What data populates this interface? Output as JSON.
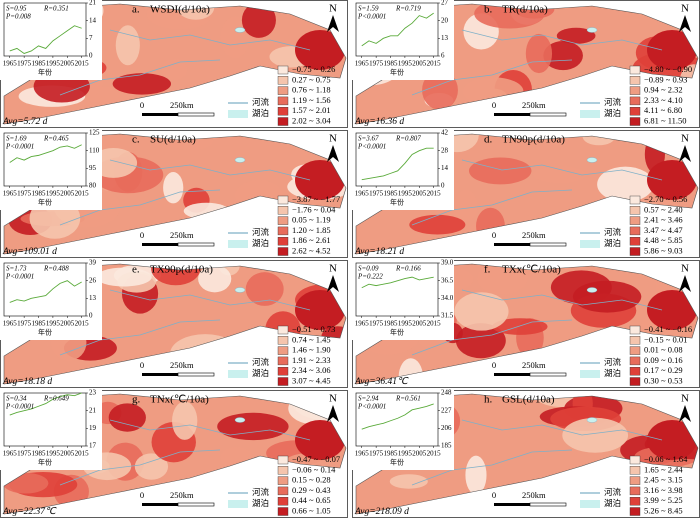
{
  "panels": [
    {
      "label": "a.",
      "title": "WSDI(d/10a)",
      "stats": {
        "s": "S=0.95",
        "r": "R=0.351",
        "p": "P=0.008"
      },
      "inset": {
        "x": [
          1965,
          1970,
          1975,
          1980,
          1985,
          1990,
          1995,
          2000,
          2005,
          2010,
          2015
        ],
        "values": [
          2,
          3,
          1,
          2,
          4,
          3,
          6,
          8,
          10,
          12,
          11
        ],
        "color": "#5aaa3a",
        "xlim": [
          1961,
          2018
        ],
        "ylim": [
          0,
          21
        ],
        "yticks": [
          0,
          7,
          14,
          21
        ],
        "xticks": [
          1965,
          1975,
          1985,
          1995,
          2005,
          2015
        ],
        "xlabel": "年份"
      },
      "legend": {
        "labels": [
          "−0.75 ~ 0.26",
          "0.27 ~ 0.75",
          "0.76 ~ 1.18",
          "1.19 ~ 1.56",
          "1.57 ~ 2.01",
          "2.02 ~ 3.04"
        ],
        "colors": [
          "#fbe9de",
          "#f5c5ad",
          "#ef9c82",
          "#e86c5b",
          "#df4039",
          "#c41d22"
        ]
      },
      "scale": {
        "zero": "0",
        "dist": "250km"
      },
      "river": "河流",
      "lake": "湖泊",
      "north": "N",
      "avg": "Avg=5.72 d"
    },
    {
      "label": "b.",
      "title": "TR(d/10a)",
      "stats": {
        "s": "S=1.59",
        "r": "R=0.719",
        "p": "P<0.0001"
      },
      "inset": {
        "x": [
          1965,
          1970,
          1975,
          1980,
          1985,
          1990,
          1995,
          2000,
          2005,
          2010,
          2015
        ],
        "values": [
          10,
          12,
          11,
          13,
          14,
          14,
          17,
          19,
          22,
          21,
          23
        ],
        "color": "#5aaa3a",
        "xlim": [
          1961,
          2018
        ],
        "ylim": [
          6,
          27
        ],
        "yticks": [
          6,
          13,
          20,
          27
        ],
        "xticks": [
          1965,
          1975,
          1985,
          1995,
          2005,
          2015
        ],
        "xlabel": "年份"
      },
      "legend": {
        "labels": [
          "−4.80 ~ −0.90",
          "−0.89 ~ 0.93",
          "0.94 ~ 2.32",
          "2.33 ~ 4.10",
          "4.11 ~ 6.80",
          "6.81 ~ 11.50"
        ],
        "colors": [
          "#fbe9de",
          "#f5c5ad",
          "#ef9c82",
          "#e86c5b",
          "#df4039",
          "#c41d22"
        ]
      },
      "scale": {
        "zero": "0",
        "dist": "250km"
      },
      "river": "河流",
      "lake": "湖泊",
      "north": "N",
      "avg": "Avg=16.36 d"
    },
    {
      "label": "c.",
      "title": "SU(d/10a)",
      "stats": {
        "s": "S=1.69",
        "r": "R=0.465",
        "p": "P<0.0001"
      },
      "inset": {
        "x": [
          1965,
          1970,
          1975,
          1980,
          1985,
          1990,
          1995,
          2000,
          2005,
          2010,
          2015
        ],
        "values": [
          100,
          104,
          102,
          105,
          106,
          108,
          110,
          113,
          114,
          112,
          115
        ],
        "color": "#5aaa3a",
        "xlim": [
          1961,
          2018
        ],
        "ylim": [
          80,
          125
        ],
        "yticks": [
          80,
          95,
          110,
          125
        ],
        "xticks": [
          1965,
          1975,
          1985,
          1995,
          2005,
          2015
        ],
        "xlabel": "年份"
      },
      "legend": {
        "labels": [
          "−3.87 ~ −1.77",
          "−1.76 ~ 0.04",
          "0.05 ~ 1.19",
          "1.20 ~ 1.85",
          "1.86 ~ 2.61",
          "2.62 ~ 4.52"
        ],
        "colors": [
          "#fbe9de",
          "#f5c5ad",
          "#ef9c82",
          "#e86c5b",
          "#df4039",
          "#c41d22"
        ]
      },
      "scale": {
        "zero": "0",
        "dist": "250km"
      },
      "river": "河流",
      "lake": "湖泊",
      "north": "N",
      "avg": "Avg=109.01 d"
    },
    {
      "label": "d.",
      "title": "TN90p(d/10a)",
      "stats": {
        "s": "S=3.67",
        "r": "R=0.807",
        "p": "P<0.0001"
      },
      "inset": {
        "x": [
          1965,
          1970,
          1975,
          1980,
          1985,
          1990,
          1995,
          2000,
          2005,
          2010,
          2015
        ],
        "values": [
          5,
          6,
          7,
          8,
          10,
          12,
          18,
          25,
          28,
          30,
          30
        ],
        "color": "#5aaa3a",
        "xlim": [
          1961,
          2018
        ],
        "ylim": [
          0,
          42
        ],
        "yticks": [
          0,
          14,
          28,
          42
        ],
        "xticks": [
          1965,
          1975,
          1985,
          1995,
          2005,
          2015
        ],
        "xlabel": "年份"
      },
      "legend": {
        "labels": [
          "−2.70 ~ 0.56",
          "0.57 ~ 2.40",
          "2.41 ~ 3.46",
          "3.47 ~ 4.47",
          "4.48 ~ 5.85",
          "5.86 ~ 9.03"
        ],
        "colors": [
          "#fbe9de",
          "#f5c5ad",
          "#ef9c82",
          "#e86c5b",
          "#df4039",
          "#c41d22"
        ]
      },
      "scale": {
        "zero": "0",
        "dist": "250km"
      },
      "river": "河流",
      "lake": "湖泊",
      "north": "N",
      "avg": "Avg=18.21 d"
    },
    {
      "label": "e.",
      "title": "TX90p(d/10a)",
      "stats": {
        "s": "S=1.73",
        "r": "R=0.488",
        "p": "P<0.0001"
      },
      "inset": {
        "x": [
          1965,
          1970,
          1975,
          1980,
          1985,
          1990,
          1995,
          2000,
          2005,
          2010,
          2015
        ],
        "values": [
          10,
          12,
          11,
          13,
          14,
          15,
          20,
          24,
          26,
          22,
          25
        ],
        "color": "#5aaa3a",
        "xlim": [
          1961,
          2018
        ],
        "ylim": [
          0,
          39
        ],
        "yticks": [
          0,
          13,
          26,
          39
        ],
        "xticks": [
          1965,
          1975,
          1985,
          1995,
          2005,
          2015
        ],
        "xlabel": "年份"
      },
      "legend": {
        "labels": [
          "−0.51 ~ 0.73",
          "0.74 ~ 1.45",
          "1.46 ~ 1.90",
          "1.91 ~ 2.33",
          "2.34 ~ 3.06",
          "3.07 ~ 4.45"
        ],
        "colors": [
          "#fbe9de",
          "#f5c5ad",
          "#ef9c82",
          "#e86c5b",
          "#df4039",
          "#c41d22"
        ]
      },
      "scale": {
        "zero": "0",
        "dist": "250km"
      },
      "river": "河流",
      "lake": "湖泊",
      "north": "N",
      "avg": "Avg=18.18 d"
    },
    {
      "label": "f.",
      "title": "TXx(℃/10a)",
      "stats": {
        "s": "S=0.09",
        "r": "R=0.166",
        "p": "P=0.222"
      },
      "inset": {
        "x": [
          1965,
          1970,
          1975,
          1980,
          1985,
          1990,
          1995,
          2000,
          2005,
          2010,
          2015
        ],
        "values": [
          35.5,
          36,
          35.8,
          36,
          36.2,
          36.5,
          36.8,
          37,
          36.6,
          36.8,
          37
        ],
        "color": "#5aaa3a",
        "xlim": [
          1961,
          2018
        ],
        "ylim": [
          31.5,
          39
        ],
        "yticks": [
          31.5,
          {
            "value": 34,
            "label": "34.0"
          },
          36.5,
          {
            "value": 39,
            "label": "39.0"
          }
        ],
        "xticks": [
          1965,
          1975,
          1985,
          1995,
          2005,
          2015
        ],
        "xlabel": "年份"
      },
      "legend": {
        "labels": [
          "−0.41 ~ −0.16",
          "−0.15 ~ 0.01",
          "0.01 ~ 0.08",
          "0.09 ~ 0.16",
          "0.17 ~ 0.29",
          "0.30 ~ 0.53"
        ],
        "colors": [
          "#fbe9de",
          "#f5c5ad",
          "#ef9c82",
          "#e86c5b",
          "#df4039",
          "#c41d22"
        ]
      },
      "scale": {
        "zero": "0",
        "dist": "250km"
      },
      "river": "河流",
      "lake": "湖泊",
      "north": "N",
      "avg": "Avg=36.41℃"
    },
    {
      "label": "g.",
      "title": "TNx(℃/10a)",
      "stats": {
        "s": "S=0.34",
        "r": "R=0.649",
        "p": "P<0.0001"
      },
      "inset": {
        "x": [
          1965,
          1970,
          1975,
          1980,
          1985,
          1990,
          1995,
          2000,
          2005,
          2010,
          2015
        ],
        "values": [
          20.5,
          20.8,
          21,
          21.2,
          21.5,
          21.8,
          22.3,
          22.6,
          22.8,
          22.7,
          23
        ],
        "color": "#5aaa3a",
        "xlim": [
          1961,
          2018
        ],
        "ylim": [
          17,
          23
        ],
        "yticks": [
          17,
          19,
          21,
          23
        ],
        "xticks": [
          1965,
          1975,
          1985,
          1995,
          2005,
          2015
        ],
        "xlabel": "年份"
      },
      "legend": {
        "labels": [
          "−0.47 ~ −0.07",
          "−0.06 ~ 0.14",
          "0.15 ~ 0.28",
          "0.29 ~ 0.43",
          "0.44 ~ 0.65",
          "0.66 ~ 1.05"
        ],
        "colors": [
          "#fbe9de",
          "#f5c5ad",
          "#ef9c82",
          "#e86c5b",
          "#df4039",
          "#c41d22"
        ]
      },
      "scale": {
        "zero": "0",
        "dist": "250km"
      },
      "river": "河流",
      "lake": "湖泊",
      "north": "N",
      "avg": "Avg=22.37℃"
    },
    {
      "label": "h.",
      "title": "GSL(d/10a)",
      "stats": {
        "s": "S=2.94",
        "r": "R=0.561",
        "p": "P<0.0001"
      },
      "inset": {
        "x": [
          1965,
          1970,
          1975,
          1980,
          1985,
          1990,
          1995,
          2000,
          2005,
          2010,
          2015
        ],
        "values": [
          205,
          208,
          210,
          212,
          215,
          218,
          222,
          228,
          230,
          232,
          235
        ],
        "color": "#5aaa3a",
        "xlim": [
          1961,
          2018
        ],
        "ylim": [
          185,
          248
        ],
        "yticks": [
          185,
          206,
          227,
          248
        ],
        "xticks": [
          1965,
          1975,
          1985,
          1995,
          2005,
          2015
        ],
        "xlabel": "年份"
      },
      "legend": {
        "labels": [
          "−0.06 ~ 1.64",
          "1.65 ~ 2.44",
          "2.45 ~ 3.15",
          "3.16 ~ 3.98",
          "3.99 ~ 5.25",
          "5.26 ~ 8.45"
        ],
        "colors": [
          "#fbe9de",
          "#f5c5ad",
          "#ef9c82",
          "#e86c5b",
          "#df4039",
          "#c41d22"
        ]
      },
      "scale": {
        "zero": "0",
        "dist": "250km"
      },
      "river": "河流",
      "lake": "湖泊",
      "north": "N",
      "avg": "Avg=218.09 d"
    }
  ]
}
